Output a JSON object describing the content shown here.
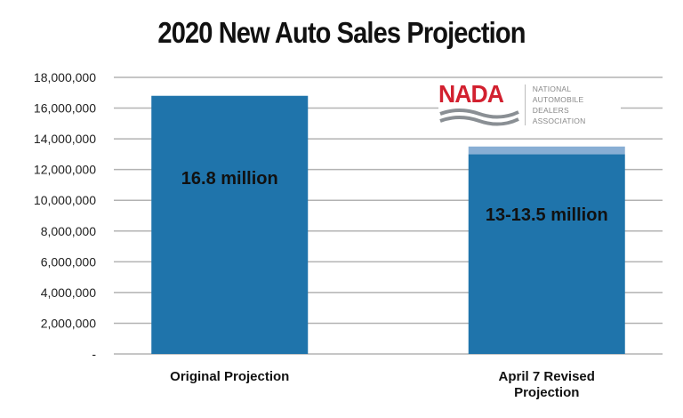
{
  "chart_data": {
    "type": "bar",
    "stacked": true,
    "title": "2020 New Auto Sales Projection",
    "xlabel": "",
    "ylabel": "",
    "categories": [
      "Original Projection",
      "April 7 Revised Projection"
    ],
    "category_lines": [
      [
        "Original Projection"
      ],
      [
        "April 7 Revised",
        "Projection"
      ]
    ],
    "series": [
      {
        "values": [
          16800000,
          13000000
        ],
        "color": "#1f74ab"
      },
      {
        "values": [
          0,
          500000
        ],
        "color": "#88aed4"
      }
    ],
    "data_labels": [
      "16.8 million",
      "13-13.5 million"
    ],
    "ylim": [
      0,
      18000000
    ],
    "yticks": [
      0,
      2000000,
      4000000,
      6000000,
      8000000,
      10000000,
      12000000,
      14000000,
      16000000,
      18000000
    ],
    "ytick_labels": [
      "-",
      "2,000,000",
      "4,000,000",
      "6,000,000",
      "8,000,000",
      "10,000,000",
      "12,000,000",
      "14,000,000",
      "16,000,000",
      "18,000,000"
    ],
    "grid": true,
    "legend": "none"
  },
  "logo": {
    "name": "NADA",
    "full_name_lines": [
      "NATIONAL AUTOMOBILE",
      "DEALERS ASSOCIATION"
    ],
    "colors": {
      "red": "#d2202f",
      "gray": "#8a8f94"
    }
  }
}
